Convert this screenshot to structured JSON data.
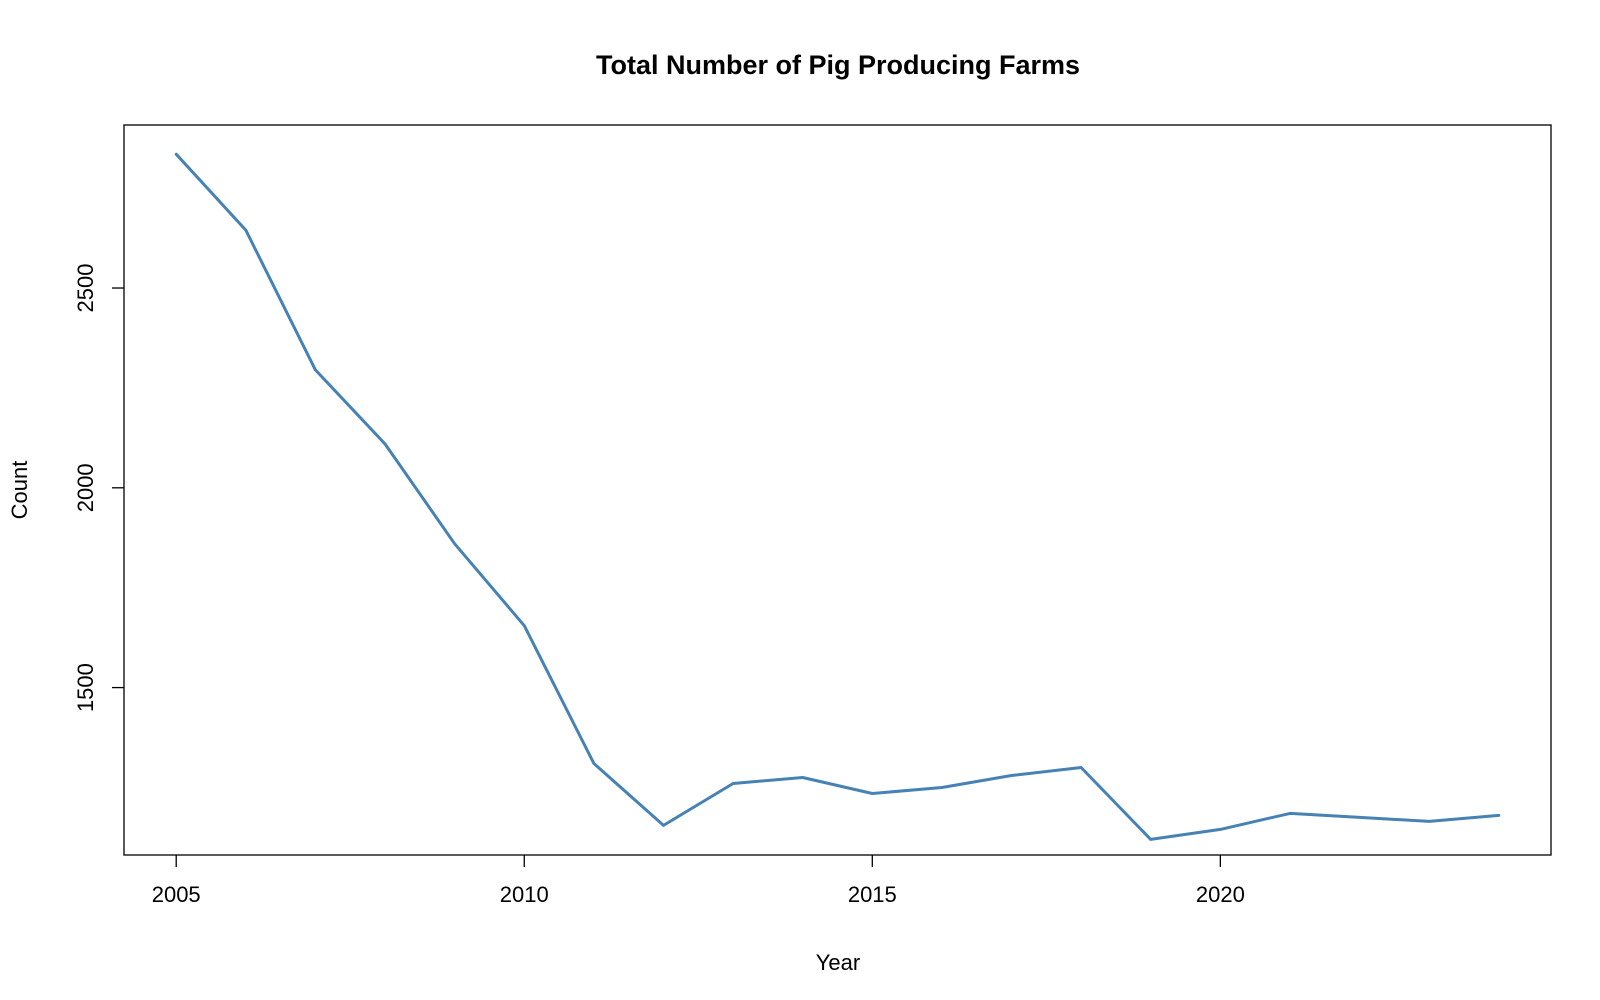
{
  "chart_data": {
    "type": "line",
    "title": "Total Number of Pig Producing Farms",
    "xlabel": "Year",
    "ylabel": "Count",
    "xlim": [
      2004.25,
      2024.75
    ],
    "ylim": [
      1081,
      2908
    ],
    "xticks": [
      2005,
      2010,
      2015,
      2020
    ],
    "yticks": [
      1500,
      2000,
      2500
    ],
    "grid": false,
    "line_color": "#4682B4",
    "series": [
      {
        "x": [
          2005,
          2006,
          2007,
          2008,
          2009,
          2010,
          2011,
          2012,
          2013,
          2014,
          2015,
          2016,
          2017,
          2018,
          2019,
          2020,
          2021,
          2022,
          2023,
          2024
        ],
        "values": [
          2835,
          2645,
          2295,
          2110,
          1860,
          1655,
          1310,
          1155,
          1260,
          1275,
          1235,
          1250,
          1280,
          1300,
          1120,
          1145,
          1185,
          1175,
          1165,
          1180
        ]
      }
    ]
  }
}
